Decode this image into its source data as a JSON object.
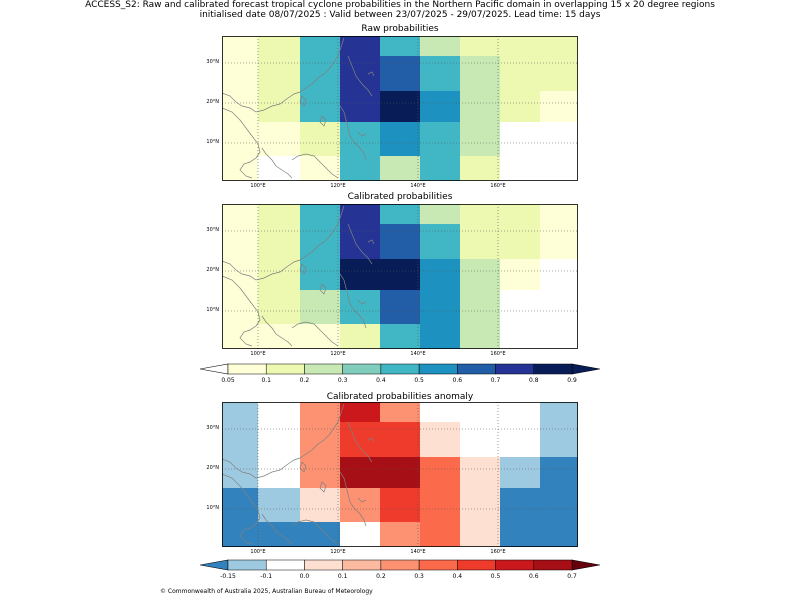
{
  "header": {
    "title_line1": "ACCESS_S2: Raw and calibrated forecast tropical cyclone probabilities in the Northern Pacific domain in overlapping 15 x 20 degree regions",
    "title_line2": "initialised date 08/07/2025 :  Valid between 23/07/2025 - 29/07/2025. Lead time: 15 days"
  },
  "panels": [
    {
      "id": "raw",
      "title": "Raw probabilities",
      "scale": "prob",
      "rows": [
        [
          "0.05",
          "0.1",
          "0.3",
          "0.8",
          "0.4",
          "0.2",
          "0.1",
          "0.1",
          "0.1"
        ],
        [
          "0.05",
          "0.1",
          "0.3",
          "0.8",
          "0.6",
          "0.3",
          "0.2",
          "0.1",
          "0.1"
        ],
        [
          "0.05",
          "0.1",
          "0.3",
          "0.8",
          "0.9",
          "0.5",
          "0.2",
          "0.1",
          "0.05"
        ],
        [
          "0.05",
          "0.05",
          "0.1",
          "0.4",
          "0.5",
          "0.4",
          "0.2",
          "",
          ""
        ],
        [
          "0.05",
          "",
          "0.05",
          "0.4",
          "0.2",
          "0.3",
          "0.1",
          "",
          ""
        ]
      ]
    },
    {
      "id": "cal",
      "title": "Calibrated probabilities",
      "scale": "prob",
      "rows": [
        [
          "0.05",
          "0.1",
          "0.3",
          "0.8",
          "0.4",
          "0.2",
          "0.1",
          "0.1",
          "0.05"
        ],
        [
          "0.05",
          "0.1",
          "0.3",
          "0.8",
          "0.6",
          "0.3",
          "0.1",
          "0.1",
          "0.05"
        ],
        [
          "0.05",
          "0.1",
          "0.3",
          "0.9",
          "0.9",
          "0.5",
          "0.2",
          "0.05",
          ""
        ],
        [
          "0.05",
          "0.1",
          "0.2",
          "0.4",
          "0.6",
          "0.5",
          "0.2",
          "",
          ""
        ],
        [
          "0.05",
          "0.05",
          "0.05",
          "0.1",
          "0.4",
          "0.5",
          "0.2",
          "",
          ""
        ]
      ]
    },
    {
      "id": "anom",
      "title": "Calibrated probabilities anomaly",
      "scale": "anom",
      "rows": [
        [
          "-0.1",
          "0.0",
          "0.2",
          "0.4",
          "0.2",
          "0.0",
          "0.0",
          "0.0",
          "-0.1"
        ],
        [
          "-0.1",
          "0.0",
          "0.2",
          "0.6",
          "0.5",
          "0.1",
          "0.0",
          "0.0",
          "-0.1"
        ],
        [
          "-0.1",
          "0.0",
          "0.2",
          "0.7",
          "0.7",
          "0.3",
          "0.1",
          "-0.1",
          "-0.15"
        ],
        [
          "-0.15",
          "-0.1",
          "0.1",
          "0.2",
          "0.5",
          "0.3",
          "0.1",
          "-0.15",
          "-0.15"
        ],
        [
          "-0.15",
          "-0.15",
          "-0.15",
          "0.0",
          "0.2",
          "0.3",
          "0.1",
          "-0.15",
          "-0.15"
        ]
      ]
    }
  ],
  "axes": {
    "lon_ticks": [
      "100°E",
      "120°E",
      "140°E",
      "160°E"
    ],
    "lat_ticks": [
      "30°N",
      "20°N",
      "10°N"
    ]
  },
  "colorbars": {
    "prob": {
      "labels": [
        "0.05",
        "0.1",
        "0.2",
        "0.3",
        "0.4",
        "0.5",
        "0.6",
        "0.7",
        "0.8",
        "0.9"
      ],
      "colors": [
        "#fefed7",
        "#edf8b1",
        "#c8e9b4",
        "#80cdbb",
        "#41b6c4",
        "#1d91c0",
        "#225ea8",
        "#253494",
        "#081d58"
      ],
      "under": "#ffffff",
      "over": "#081d58"
    },
    "anom": {
      "labels": [
        "-0.15",
        "-0.1",
        "0.0",
        "0.1",
        "0.2",
        "0.3",
        "0.4",
        "0.5",
        "0.6",
        "0.7"
      ],
      "colors": [
        "#9ecae1",
        "#ffffff",
        "#fee0d2",
        "#fcbba1",
        "#fc9272",
        "#fb6a4a",
        "#ef3b2c",
        "#cb181d",
        "#a50f15"
      ],
      "under": "#3182bd",
      "over": "#67000d"
    }
  },
  "colormap": {
    "prob": {
      "": "#ffffff",
      "0.05": "#fefed7",
      "0.1": "#edf8b1",
      "0.2": "#c8e9b4",
      "0.3": "#41b6c4",
      "0.4": "#41b6c4",
      "0.5": "#1d91c0",
      "0.6": "#225ea8",
      "0.8": "#253494",
      "0.9": "#081d58"
    },
    "anom": {
      "-0.15": "#3182bd",
      "-0.1": "#9ecae1",
      "0.0": "#ffffff",
      "0.1": "#fee0d2",
      "0.2": "#fc9272",
      "0.3": "#fb6a4a",
      "0.4": "#cb181d",
      "0.5": "#ef3b2c",
      "0.6": "#ef3b2c",
      "0.7": "#a50f15"
    }
  },
  "footer": "© Commonwealth of Australia 2025, Australian Bureau of Meteorology"
}
